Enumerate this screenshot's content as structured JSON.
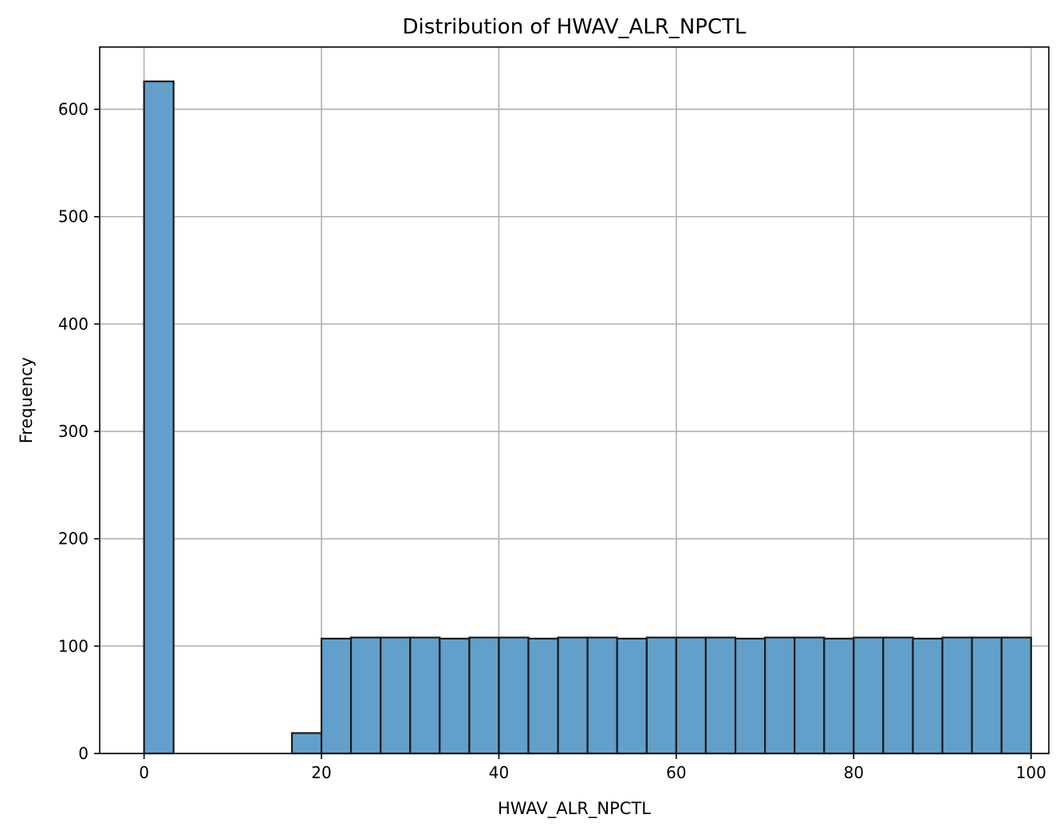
{
  "chart_data": {
    "type": "bar",
    "title": "Distribution of HWAV_ALR_NPCTL",
    "xlabel": "HWAV_ALR_NPCTL",
    "ylabel": "Frequency",
    "xlim": [
      -5,
      102
    ],
    "ylim": [
      0,
      658
    ],
    "xticks": [
      0,
      20,
      40,
      60,
      80,
      100
    ],
    "yticks": [
      0,
      100,
      200,
      300,
      400,
      500,
      600
    ],
    "grid": true,
    "bar_color": "#62a0cb",
    "edge_color": "#1a1a1a",
    "bins": [
      {
        "x0": 0.0,
        "x1": 3.33,
        "value": 626
      },
      {
        "x0": 3.33,
        "x1": 6.67,
        "value": 0
      },
      {
        "x0": 6.67,
        "x1": 10.0,
        "value": 0
      },
      {
        "x0": 10.0,
        "x1": 13.33,
        "value": 0
      },
      {
        "x0": 13.33,
        "x1": 16.67,
        "value": 0
      },
      {
        "x0": 16.67,
        "x1": 20.0,
        "value": 19
      },
      {
        "x0": 20.0,
        "x1": 23.33,
        "value": 107
      },
      {
        "x0": 23.33,
        "x1": 26.67,
        "value": 108
      },
      {
        "x0": 26.67,
        "x1": 30.0,
        "value": 108
      },
      {
        "x0": 30.0,
        "x1": 33.33,
        "value": 108
      },
      {
        "x0": 33.33,
        "x1": 36.67,
        "value": 107
      },
      {
        "x0": 36.67,
        "x1": 40.0,
        "value": 108
      },
      {
        "x0": 40.0,
        "x1": 43.33,
        "value": 108
      },
      {
        "x0": 43.33,
        "x1": 46.67,
        "value": 107
      },
      {
        "x0": 46.67,
        "x1": 50.0,
        "value": 108
      },
      {
        "x0": 50.0,
        "x1": 53.33,
        "value": 108
      },
      {
        "x0": 53.33,
        "x1": 56.67,
        "value": 107
      },
      {
        "x0": 56.67,
        "x1": 60.0,
        "value": 108
      },
      {
        "x0": 60.0,
        "x1": 63.33,
        "value": 108
      },
      {
        "x0": 63.33,
        "x1": 66.67,
        "value": 108
      },
      {
        "x0": 66.67,
        "x1": 70.0,
        "value": 107
      },
      {
        "x0": 70.0,
        "x1": 73.33,
        "value": 108
      },
      {
        "x0": 73.33,
        "x1": 76.67,
        "value": 108
      },
      {
        "x0": 76.67,
        "x1": 80.0,
        "value": 107
      },
      {
        "x0": 80.0,
        "x1": 83.33,
        "value": 108
      },
      {
        "x0": 83.33,
        "x1": 86.67,
        "value": 108
      },
      {
        "x0": 86.67,
        "x1": 90.0,
        "value": 107
      },
      {
        "x0": 90.0,
        "x1": 93.33,
        "value": 108
      },
      {
        "x0": 93.33,
        "x1": 96.67,
        "value": 108
      },
      {
        "x0": 96.67,
        "x1": 100.0,
        "value": 108
      }
    ]
  }
}
